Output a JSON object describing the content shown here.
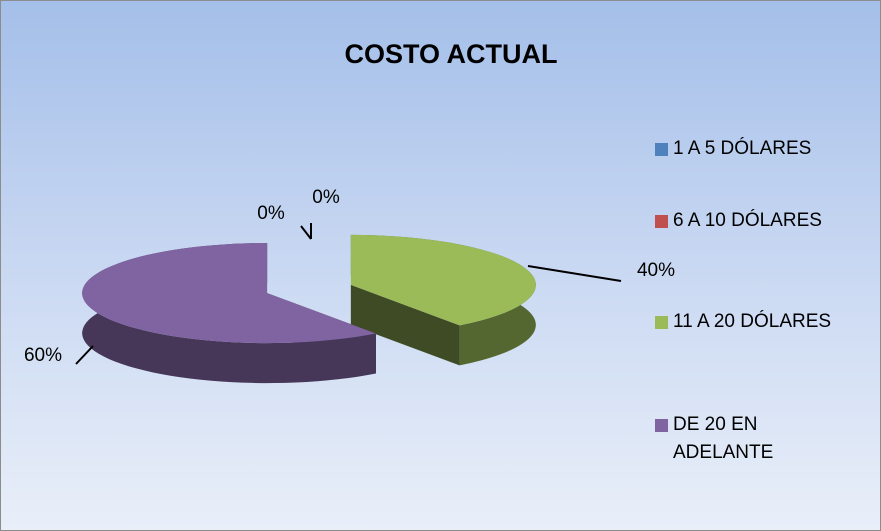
{
  "chart_data": {
    "type": "pie",
    "title": "COSTO ACTUAL",
    "categories": [
      "1 A 5 DÓLARES",
      "6 A 10 DÓLARES",
      "11 A 20 DÓLARES",
      "DE 20 EN ADELANTE"
    ],
    "values": [
      0,
      0,
      40,
      60
    ],
    "value_labels": [
      "0%",
      "0%",
      "40%",
      "60%"
    ],
    "colors": [
      "#4f81bd",
      "#c0504d",
      "#9bbb59",
      "#8064a2"
    ],
    "legend": "right"
  }
}
